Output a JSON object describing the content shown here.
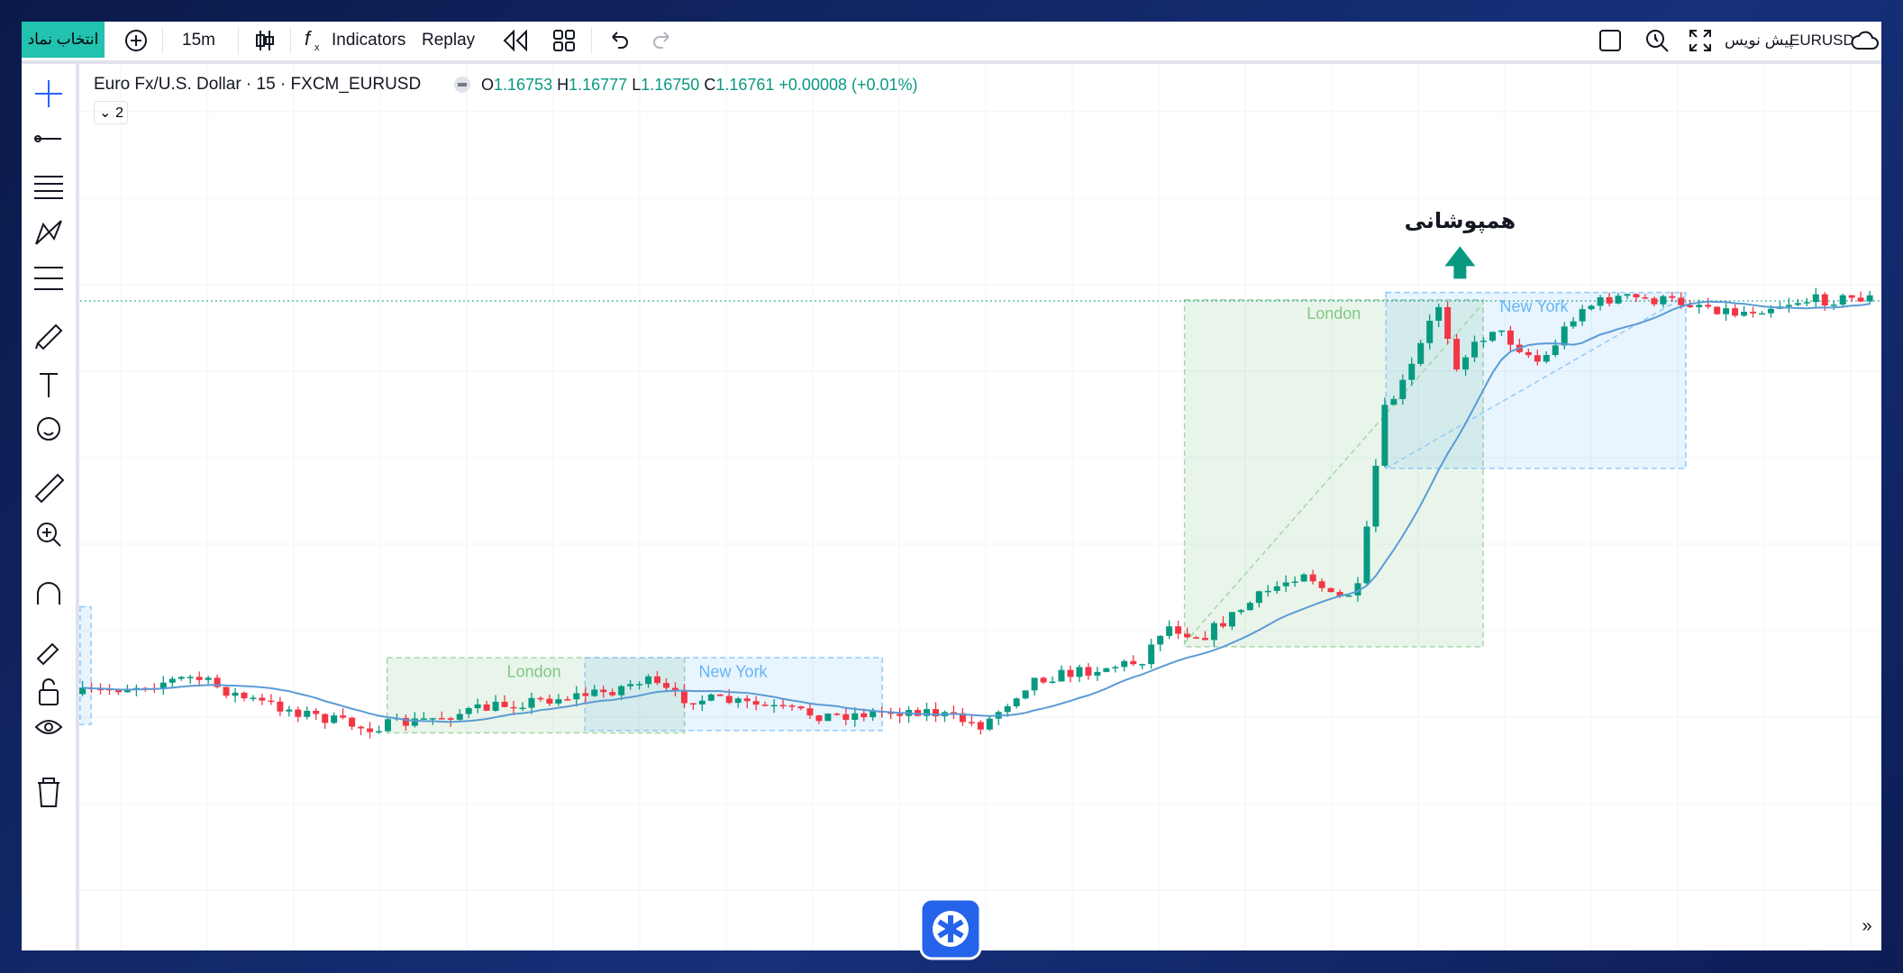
{
  "toolbar": {
    "symbol_button": "انتخاب نماد",
    "interval": "15m",
    "indicators": "Indicators",
    "replay": "Replay",
    "symbol": "EURUSD",
    "layout_name": "پیش نویس"
  },
  "legend": {
    "title": "Euro Fx/U.S. Dollar · 15 · FXCM_EURUSD",
    "open_label": "O",
    "open": "1.16753",
    "high_label": "H",
    "high": "1.16777",
    "low_label": "L",
    "low": "1.16750",
    "close_label": "C",
    "close": "1.16761",
    "change": "+0.00008 (+0.01%)",
    "indicator_count": "2"
  },
  "annotations": {
    "overlap": "همپوشانی",
    "london_1": "London",
    "new_york_1": "New York",
    "london_2": "London",
    "new_york_2": "New York"
  }
}
